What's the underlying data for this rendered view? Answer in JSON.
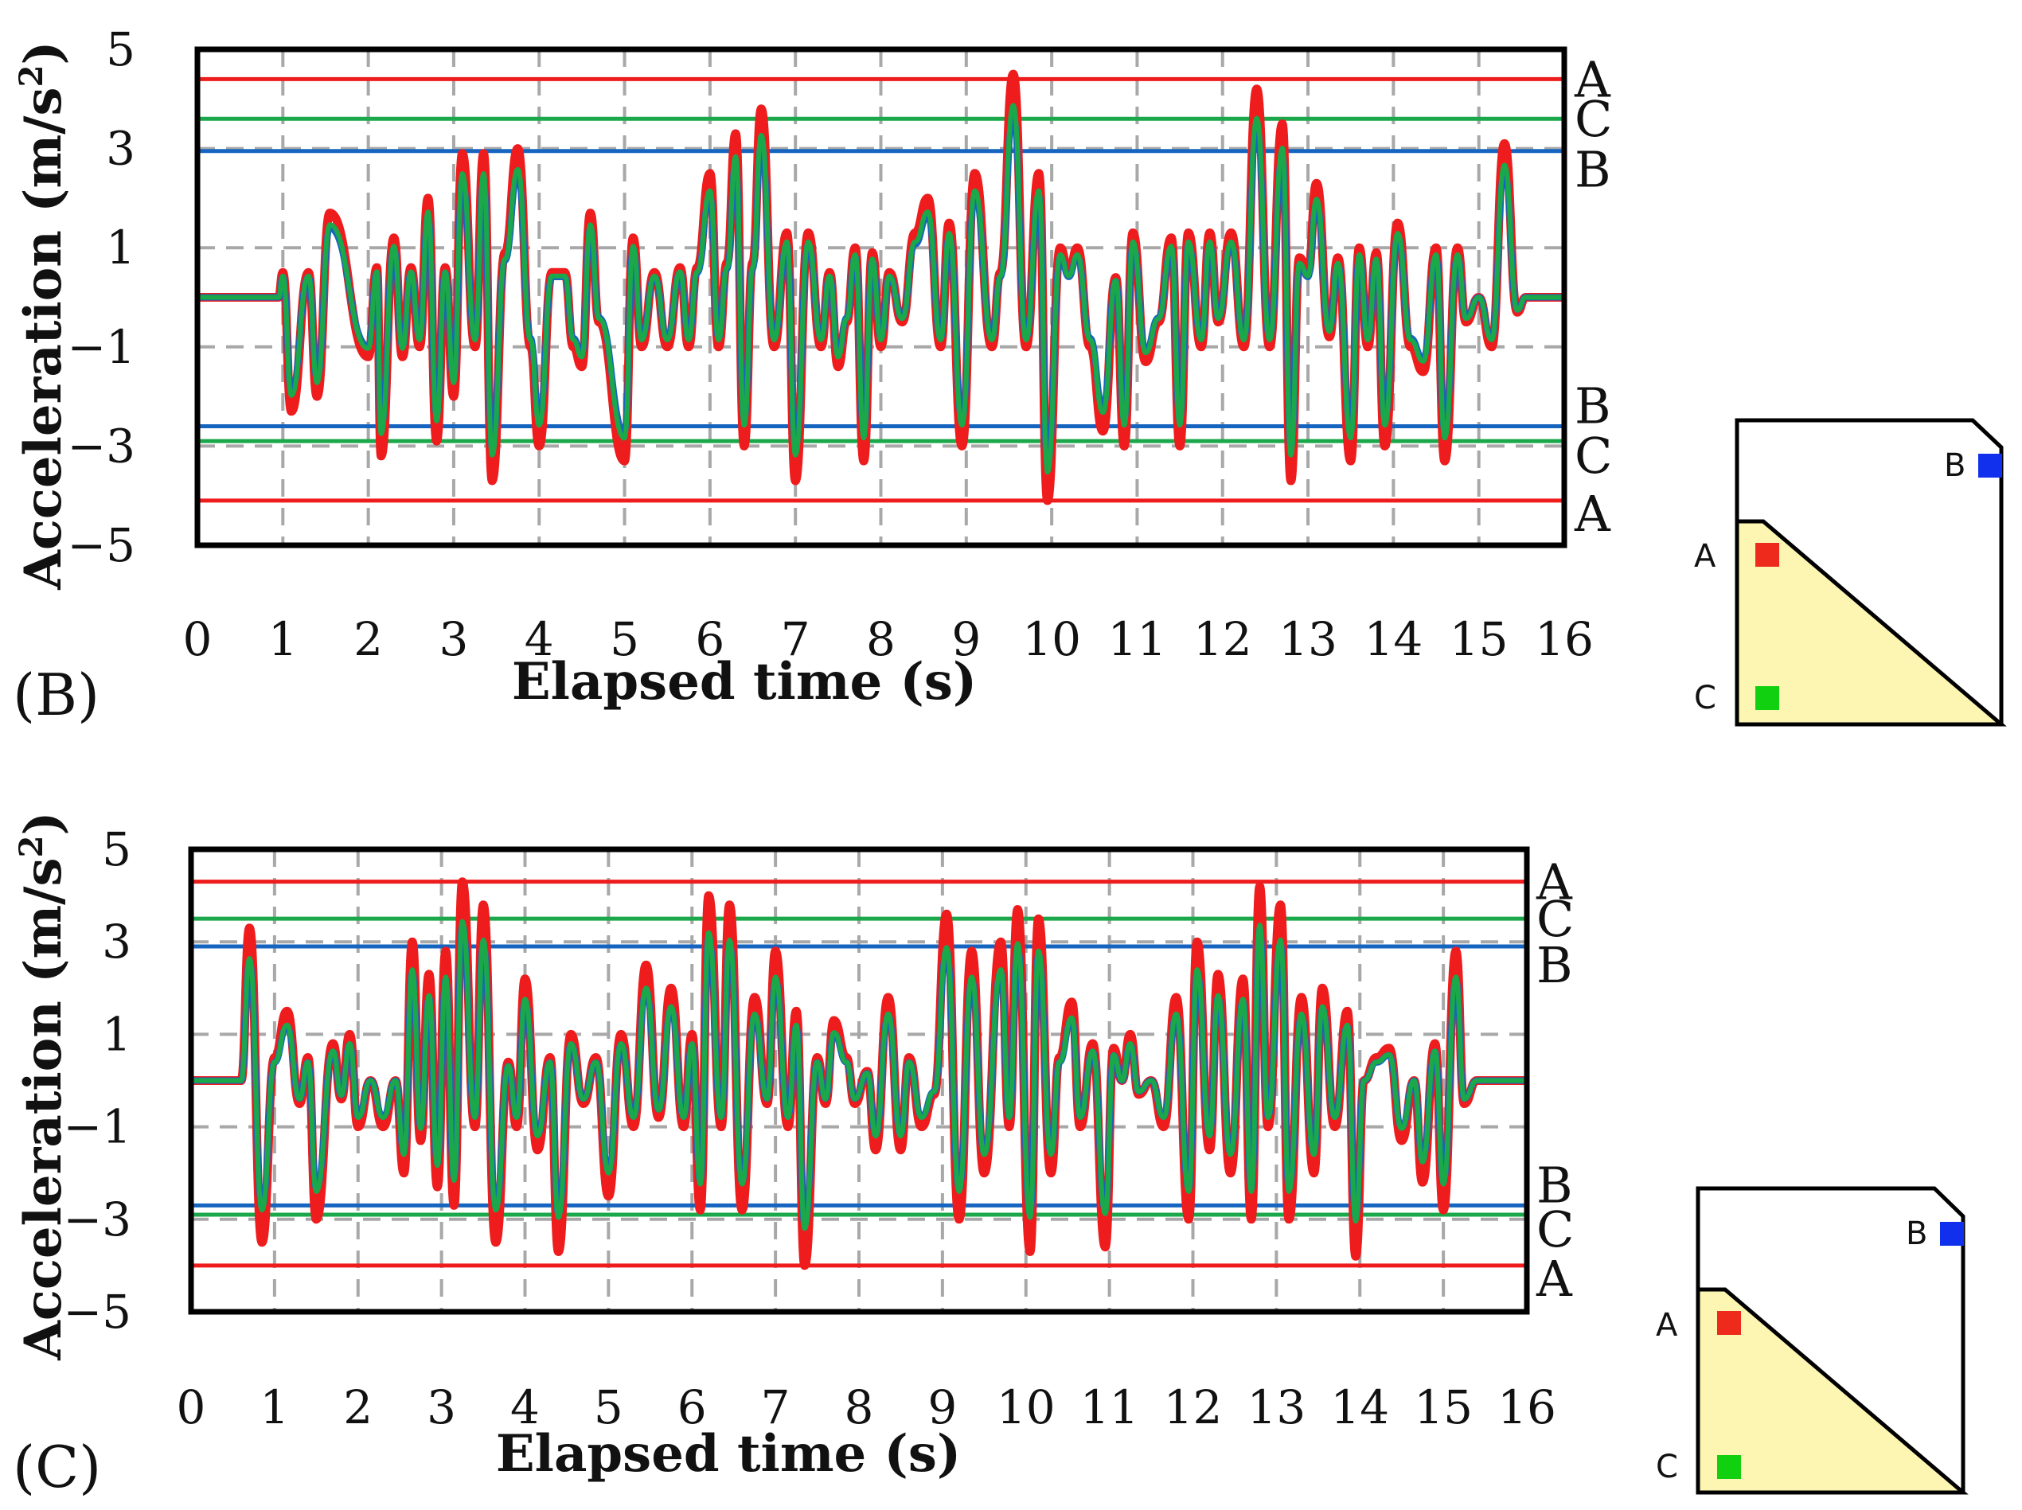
{
  "chart_data": [
    {
      "type": "line",
      "panel_label": "(B)",
      "xlabel": "Elapsed time (s)",
      "ylabel_main": "Acceleration (m/s",
      "ylabel_sup": "2",
      "ylabel_close": ")",
      "xlim": [
        0,
        16
      ],
      "ylim": [
        -5,
        5
      ],
      "xticks": [
        "0",
        "1",
        "2",
        "3",
        "4",
        "5",
        "6",
        "7",
        "8",
        "9",
        "10",
        "11",
        "12",
        "13",
        "14",
        "15",
        "16"
      ],
      "yticks": [
        "5",
        "3",
        "1",
        "−1",
        "−3",
        "−5"
      ],
      "ytick_values": [
        5,
        3,
        1,
        -1,
        -3,
        -5
      ],
      "thresholds": [
        {
          "name": "A",
          "value": 4.4,
          "color": "#ee1c1c"
        },
        {
          "name": "C",
          "value": 3.6,
          "color": "#1aa84a"
        },
        {
          "name": "B",
          "value": 2.95,
          "color": "#1565c0"
        },
        {
          "name": "B",
          "value": -2.6,
          "color": "#1565c0"
        },
        {
          "name": "C",
          "value": -2.9,
          "color": "#1aa84a"
        },
        {
          "name": "A",
          "value": -4.1,
          "color": "#ee1c1c"
        }
      ],
      "series": [
        {
          "name": "A",
          "color": "#ee1c1c",
          "scale": 1.0
        },
        {
          "name": "B",
          "color": "#1565c0",
          "scale": 0.82
        },
        {
          "name": "C",
          "color": "#1aa84a",
          "scale": 0.86
        }
      ],
      "peaks": [
        [
          1.0,
          0.5
        ],
        [
          1.1,
          -2.3
        ],
        [
          1.3,
          0.5
        ],
        [
          1.4,
          -2.0
        ],
        [
          1.55,
          1.7
        ],
        [
          2.0,
          -1.2
        ],
        [
          2.1,
          0.6
        ],
        [
          2.15,
          -3.2
        ],
        [
          2.3,
          1.2
        ],
        [
          2.4,
          -1.2
        ],
        [
          2.5,
          0.6
        ],
        [
          2.6,
          -1.0
        ],
        [
          2.7,
          2.0
        ],
        [
          2.8,
          -2.9
        ],
        [
          2.9,
          0.6
        ],
        [
          3.0,
          -2.0
        ],
        [
          3.1,
          2.9
        ],
        [
          3.25,
          -1.0
        ],
        [
          3.35,
          2.9
        ],
        [
          3.45,
          -3.7
        ],
        [
          3.6,
          0.9
        ],
        [
          3.75,
          3.0
        ],
        [
          3.9,
          -1.0
        ],
        [
          4.0,
          -3.0
        ],
        [
          4.15,
          0.5
        ],
        [
          4.3,
          0.5
        ],
        [
          4.4,
          -1.0
        ],
        [
          4.5,
          -1.4
        ],
        [
          4.6,
          1.7
        ],
        [
          4.7,
          -0.5
        ],
        [
          5.0,
          -3.3
        ],
        [
          5.1,
          1.2
        ],
        [
          5.2,
          -1.0
        ],
        [
          5.35,
          0.5
        ],
        [
          5.5,
          -1.0
        ],
        [
          5.65,
          0.6
        ],
        [
          5.75,
          -1.0
        ],
        [
          5.85,
          0.6
        ],
        [
          6.0,
          2.5
        ],
        [
          6.1,
          -1.0
        ],
        [
          6.2,
          0.7
        ],
        [
          6.3,
          3.3
        ],
        [
          6.4,
          -3.0
        ],
        [
          6.5,
          0.7
        ],
        [
          6.6,
          3.8
        ],
        [
          6.75,
          -1.0
        ],
        [
          6.9,
          1.3
        ],
        [
          7.0,
          -3.7
        ],
        [
          7.15,
          1.3
        ],
        [
          7.3,
          -1.0
        ],
        [
          7.4,
          0.5
        ],
        [
          7.5,
          -1.4
        ],
        [
          7.6,
          -0.5
        ],
        [
          7.7,
          1.0
        ],
        [
          7.8,
          -3.3
        ],
        [
          7.9,
          0.9
        ],
        [
          8.0,
          -1.0
        ],
        [
          8.1,
          0.5
        ],
        [
          8.25,
          -0.5
        ],
        [
          8.4,
          1.3
        ],
        [
          8.55,
          2.0
        ],
        [
          8.7,
          -1.0
        ],
        [
          8.8,
          1.5
        ],
        [
          8.95,
          -3.0
        ],
        [
          9.1,
          2.5
        ],
        [
          9.3,
          -1.0
        ],
        [
          9.4,
          0.5
        ],
        [
          9.55,
          4.5
        ],
        [
          9.7,
          -1.0
        ],
        [
          9.85,
          2.5
        ],
        [
          9.95,
          -4.1
        ],
        [
          10.1,
          1.0
        ],
        [
          10.2,
          0.5
        ],
        [
          10.3,
          1.0
        ],
        [
          10.45,
          -1.0
        ],
        [
          10.6,
          -2.7
        ],
        [
          10.75,
          0.4
        ],
        [
          10.85,
          -3.0
        ],
        [
          10.95,
          1.3
        ],
        [
          11.1,
          -1.3
        ],
        [
          11.25,
          -0.5
        ],
        [
          11.4,
          1.2
        ],
        [
          11.5,
          -3.0
        ],
        [
          11.6,
          1.3
        ],
        [
          11.75,
          -1.0
        ],
        [
          11.85,
          1.3
        ],
        [
          11.95,
          -0.5
        ],
        [
          12.1,
          1.3
        ],
        [
          12.25,
          -1.0
        ],
        [
          12.4,
          4.2
        ],
        [
          12.55,
          -1.0
        ],
        [
          12.7,
          3.5
        ],
        [
          12.8,
          -3.7
        ],
        [
          12.9,
          0.8
        ],
        [
          13.0,
          0.5
        ],
        [
          13.1,
          2.3
        ],
        [
          13.25,
          -0.8
        ],
        [
          13.35,
          0.8
        ],
        [
          13.5,
          -3.3
        ],
        [
          13.6,
          1.0
        ],
        [
          13.7,
          -1.0
        ],
        [
          13.8,
          0.9
        ],
        [
          13.9,
          -3.0
        ],
        [
          14.05,
          1.5
        ],
        [
          14.2,
          -1.0
        ],
        [
          14.35,
          -1.5
        ],
        [
          14.5,
          1.0
        ],
        [
          14.6,
          -3.3
        ],
        [
          14.75,
          1.0
        ],
        [
          14.85,
          -0.5
        ],
        [
          15.0,
          0.0
        ],
        [
          15.15,
          -1.0
        ],
        [
          15.3,
          3.1
        ],
        [
          15.45,
          -0.3
        ]
      ],
      "flat_start": 0.95,
      "flat_end": 15.55
    },
    {
      "type": "line",
      "panel_label": "(C)",
      "xlabel": "Elapsed time (s)",
      "ylabel_main": "Acceleration (m/s",
      "ylabel_sup": "2",
      "ylabel_close": ")",
      "xlim": [
        0,
        16
      ],
      "ylim": [
        -5,
        5
      ],
      "xticks": [
        "0",
        "1",
        "2",
        "3",
        "4",
        "5",
        "6",
        "7",
        "8",
        "9",
        "10",
        "11",
        "12",
        "13",
        "14",
        "15",
        "16"
      ],
      "yticks": [
        "5",
        "3",
        "1",
        "−1",
        "−3",
        "−5"
      ],
      "ytick_values": [
        5,
        3,
        1,
        -1,
        -3,
        -5
      ],
      "thresholds": [
        {
          "name": "A",
          "value": 4.3,
          "color": "#ee1c1c"
        },
        {
          "name": "C",
          "value": 3.5,
          "color": "#1aa84a"
        },
        {
          "name": "B",
          "value": 2.9,
          "color": "#1565c0"
        },
        {
          "name": "B",
          "value": -2.7,
          "color": "#1565c0"
        },
        {
          "name": "C",
          "value": -2.9,
          "color": "#1aa84a"
        },
        {
          "name": "A",
          "value": -4.0,
          "color": "#ee1c1c"
        }
      ],
      "series": [
        {
          "name": "A",
          "color": "#ee1c1c",
          "scale": 1.0
        },
        {
          "name": "B",
          "color": "#1565c0",
          "scale": 0.78
        },
        {
          "name": "C",
          "color": "#1aa84a",
          "scale": 0.8
        }
      ],
      "peaks": [
        [
          0.7,
          3.3
        ],
        [
          0.85,
          -3.5
        ],
        [
          1.0,
          0.5
        ],
        [
          1.15,
          1.5
        ],
        [
          1.3,
          -0.5
        ],
        [
          1.4,
          0.5
        ],
        [
          1.5,
          -3.0
        ],
        [
          1.7,
          0.8
        ],
        [
          1.8,
          -0.4
        ],
        [
          1.9,
          1.0
        ],
        [
          2.0,
          -1.0
        ],
        [
          2.15,
          0.0
        ],
        [
          2.3,
          -1.0
        ],
        [
          2.45,
          0.0
        ],
        [
          2.55,
          -2.0
        ],
        [
          2.65,
          3.0
        ],
        [
          2.75,
          -1.3
        ],
        [
          2.85,
          2.3
        ],
        [
          2.95,
          -2.3
        ],
        [
          3.05,
          2.8
        ],
        [
          3.15,
          -2.7
        ],
        [
          3.25,
          4.3
        ],
        [
          3.4,
          -1.0
        ],
        [
          3.5,
          3.8
        ],
        [
          3.65,
          -3.5
        ],
        [
          3.8,
          0.4
        ],
        [
          3.9,
          -1.0
        ],
        [
          4.0,
          2.2
        ],
        [
          4.15,
          -1.5
        ],
        [
          4.3,
          0.5
        ],
        [
          4.4,
          -3.7
        ],
        [
          4.55,
          1.0
        ],
        [
          4.7,
          -0.5
        ],
        [
          4.85,
          0.5
        ],
        [
          5.0,
          -2.5
        ],
        [
          5.15,
          1.0
        ],
        [
          5.3,
          -1.0
        ],
        [
          5.45,
          2.5
        ],
        [
          5.6,
          -0.8
        ],
        [
          5.75,
          2.0
        ],
        [
          5.9,
          -1.0
        ],
        [
          6.0,
          1.0
        ],
        [
          6.1,
          -2.8
        ],
        [
          6.2,
          4.0
        ],
        [
          6.35,
          -1.0
        ],
        [
          6.45,
          3.8
        ],
        [
          6.6,
          -2.8
        ],
        [
          6.75,
          1.8
        ],
        [
          6.9,
          -0.5
        ],
        [
          7.0,
          2.8
        ],
        [
          7.15,
          -1.0
        ],
        [
          7.25,
          1.5
        ],
        [
          7.35,
          -4.0
        ],
        [
          7.5,
          0.5
        ],
        [
          7.6,
          -0.5
        ],
        [
          7.7,
          1.3
        ],
        [
          7.85,
          0.5
        ],
        [
          7.95,
          -0.5
        ],
        [
          8.1,
          0.2
        ],
        [
          8.2,
          -1.5
        ],
        [
          8.35,
          1.8
        ],
        [
          8.5,
          -1.5
        ],
        [
          8.6,
          0.5
        ],
        [
          8.75,
          -1.0
        ],
        [
          8.9,
          -0.3
        ],
        [
          9.05,
          3.6
        ],
        [
          9.2,
          -3.0
        ],
        [
          9.35,
          2.8
        ],
        [
          9.5,
          -2.0
        ],
        [
          9.7,
          3.0
        ],
        [
          9.8,
          -1.0
        ],
        [
          9.9,
          3.7
        ],
        [
          10.05,
          -3.7
        ],
        [
          10.15,
          3.5
        ],
        [
          10.3,
          -2.0
        ],
        [
          10.4,
          0.5
        ],
        [
          10.55,
          1.7
        ],
        [
          10.65,
          -1.0
        ],
        [
          10.8,
          0.8
        ],
        [
          10.95,
          -3.6
        ],
        [
          11.05,
          0.7
        ],
        [
          11.15,
          0.0
        ],
        [
          11.25,
          1.0
        ],
        [
          11.35,
          -0.3
        ],
        [
          11.5,
          0.0
        ],
        [
          11.65,
          -1.0
        ],
        [
          11.8,
          1.8
        ],
        [
          11.95,
          -3.0
        ],
        [
          12.05,
          3.0
        ],
        [
          12.2,
          -1.5
        ],
        [
          12.3,
          2.3
        ],
        [
          12.45,
          -2.0
        ],
        [
          12.6,
          2.2
        ],
        [
          12.7,
          -3.0
        ],
        [
          12.8,
          4.2
        ],
        [
          12.9,
          -1.0
        ],
        [
          13.05,
          3.8
        ],
        [
          13.15,
          -3.0
        ],
        [
          13.3,
          1.8
        ],
        [
          13.45,
          -2.0
        ],
        [
          13.55,
          2.0
        ],
        [
          13.7,
          -1.0
        ],
        [
          13.85,
          1.5
        ],
        [
          13.95,
          -3.8
        ],
        [
          14.05,
          0.0
        ],
        [
          14.2,
          0.5
        ],
        [
          14.35,
          0.7
        ],
        [
          14.5,
          -1.3
        ],
        [
          14.65,
          0.0
        ],
        [
          14.75,
          -2.2
        ],
        [
          14.9,
          0.8
        ],
        [
          15.0,
          -2.8
        ],
        [
          15.15,
          2.8
        ],
        [
          15.25,
          -0.5
        ]
      ],
      "flat_start": 0.6,
      "flat_end": 15.4
    }
  ],
  "legend_diagrams": [
    {
      "labels": [
        "B",
        "A",
        "C"
      ],
      "colors": {
        "A": "#ee2a1c",
        "B": "#1030ee",
        "C": "#10d010"
      }
    },
    {
      "labels": [
        "B",
        "A",
        "C"
      ],
      "colors": {
        "A": "#ee2a1c",
        "B": "#1030ee",
        "C": "#10d010"
      }
    }
  ]
}
